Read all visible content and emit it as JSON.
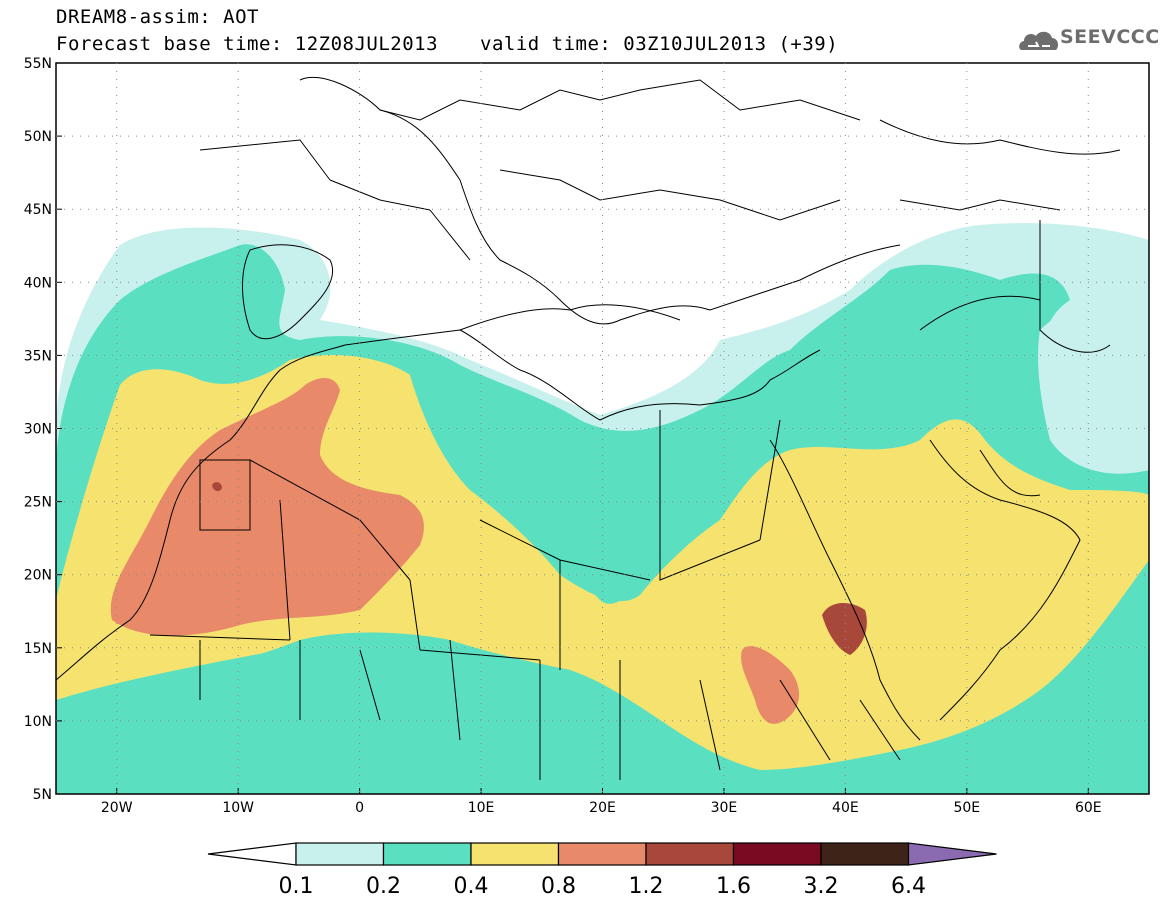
{
  "header": {
    "title": "DREAM8-assim: AOT",
    "base_time": "Forecast base time: 12Z08JUL2013",
    "valid_time": "valid time: 03Z10JUL2013 (+39)"
  },
  "logo": {
    "text": "SEEVCCC",
    "icon": "cloud-icon"
  },
  "map": {
    "lat_labels": [
      "55N",
      "50N",
      "45N",
      "40N",
      "35N",
      "30N",
      "25N",
      "20N",
      "15N",
      "10N",
      "5N"
    ],
    "lon_labels": [
      "20W",
      "10W",
      "0",
      "10E",
      "20E",
      "30E",
      "40E",
      "50E",
      "60E"
    ]
  },
  "colorbar": {
    "levels": [
      "0.1",
      "0.2",
      "0.4",
      "0.8",
      "1.2",
      "1.6",
      "3.2",
      "6.4"
    ],
    "colors": [
      "#c8f0ec",
      "#5adfc1",
      "#f5e26f",
      "#e8896a",
      "#a8483a",
      "#7a0a22",
      "#3d2318",
      "#8a6ab0"
    ],
    "under_color": "#ffffff"
  }
}
